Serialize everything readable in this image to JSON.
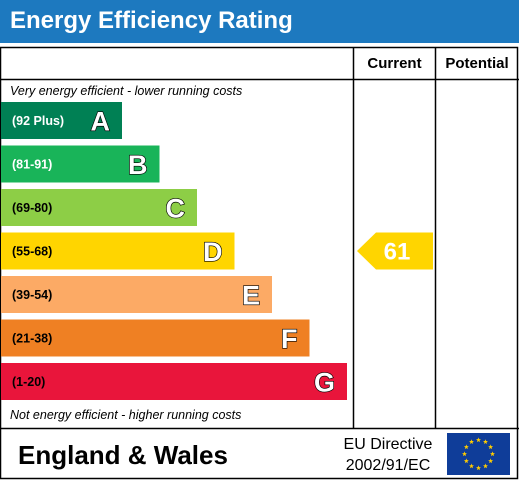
{
  "title": "Energy Efficiency Rating",
  "columns": {
    "current": "Current",
    "potential": "Potential"
  },
  "notes": {
    "top": "Very energy efficient - lower running costs",
    "bottom": "Not energy efficient - higher running costs"
  },
  "footer": {
    "region": "England & Wales",
    "directive_line1": "EU Directive",
    "directive_line2": "2002/91/EC"
  },
  "colors": {
    "header": "#1d79bf",
    "eu_flag": "#0f3d99",
    "eu_stars": "#ffcc00"
  },
  "chart_data": {
    "type": "bar",
    "categories": [
      "A",
      "B",
      "C",
      "D",
      "E",
      "F",
      "G"
    ],
    "ranges": [
      "(92 Plus)",
      "(81-91)",
      "(69-80)",
      "(55-68)",
      "(39-54)",
      "(21-38)",
      "(1-20)"
    ],
    "colors": [
      "#008054",
      "#19b459",
      "#8dce46",
      "#ffd500",
      "#fcaa65",
      "#ef8023",
      "#e9153b"
    ],
    "range_text_colors": [
      "#ffffff",
      "#ffffff",
      "#000000",
      "#000000",
      "#000000",
      "#000000",
      "#000000"
    ],
    "current": {
      "value": 61,
      "band": "D",
      "color": "#ffd500"
    },
    "potential": null
  }
}
